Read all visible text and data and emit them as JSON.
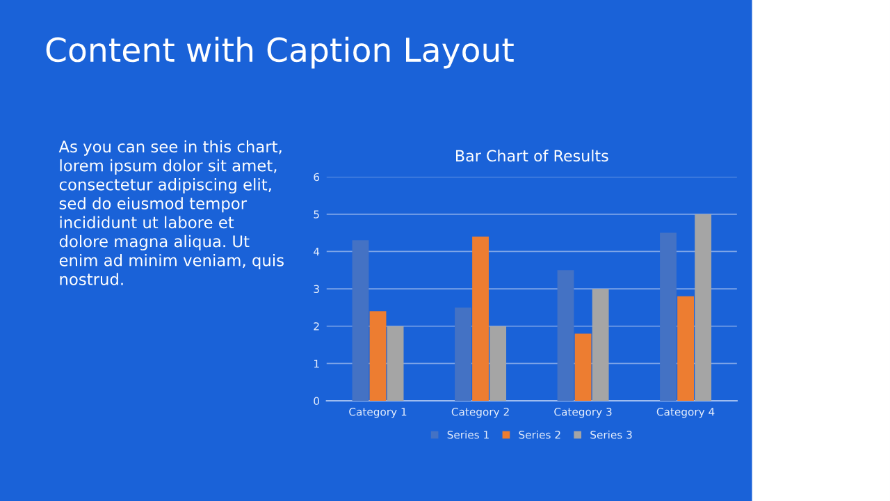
{
  "chart_data": {
    "type": "bar",
    "title": "Bar Chart of Results",
    "categories": [
      "Category 1",
      "Category 2",
      "Category 3",
      "Category 4"
    ],
    "series": [
      {
        "name": "Series 1",
        "color": "#4472c4",
        "values": [
          4.3,
          2.5,
          3.5,
          4.5
        ]
      },
      {
        "name": "Series 2",
        "color": "#ed7d31",
        "values": [
          2.4,
          4.4,
          1.8,
          2.8
        ]
      },
      {
        "name": "Series 3",
        "color": "#a5a5a5",
        "values": [
          2,
          2,
          3,
          5
        ]
      }
    ],
    "ylim": [
      0,
      6
    ],
    "yticks": [
      0,
      1,
      2,
      3,
      4,
      5,
      6
    ],
    "grid": "y",
    "legend": "bottom",
    "annotations": [
      "Content with Caption Layout",
      "As you can see in this chart,\nlorem ipsum dolor sit amet,\nconsectetur adipiscing elit,\nsed do eiusmod tempor\nincididunt ut labore et\ndolore magna aliqua. Ut\nenim ad minim veniam, quis\nnostrud."
    ]
  }
}
